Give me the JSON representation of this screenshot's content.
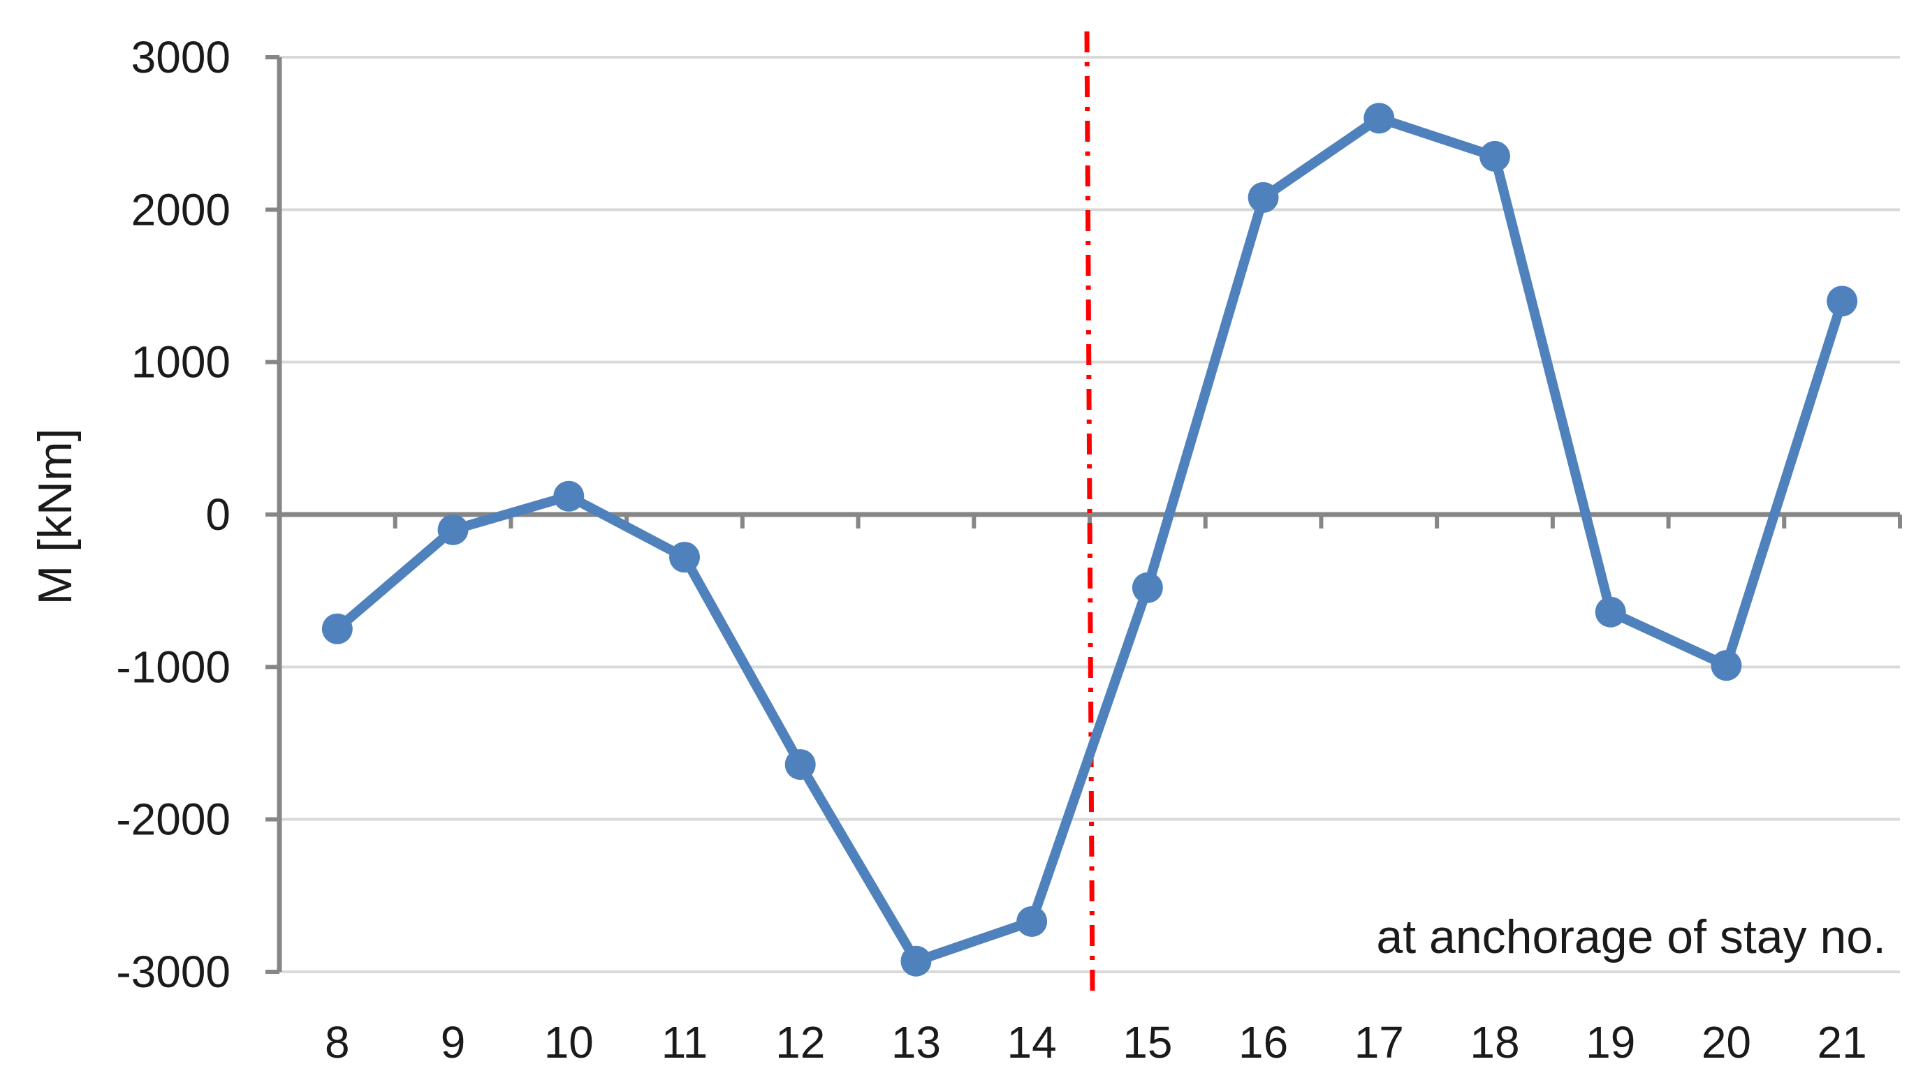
{
  "chart_data": {
    "type": "line",
    "categories": [
      "8",
      "9",
      "10",
      "11",
      "12",
      "13",
      "14",
      "15",
      "16",
      "17",
      "18",
      "19",
      "20",
      "21"
    ],
    "series": [
      {
        "values": [
          -750,
          -100,
          120,
          -280,
          -1640,
          -2930,
          -2670,
          -480,
          2080,
          2600,
          2350,
          -640,
          -990,
          1400
        ],
        "color": "#4f81bd"
      }
    ],
    "ylabel": "M [kNm]",
    "xlabel": "",
    "ylim": [
      -3000,
      3000
    ],
    "yticks": [
      -3000,
      -2000,
      -1000,
      0,
      1000,
      2000,
      3000
    ],
    "grid": true,
    "annotation": "at anchorage of stay no.",
    "reference_line": {
      "x_between": [
        "14",
        "15"
      ],
      "color": "#ff0000",
      "style": "dash-dot"
    }
  }
}
